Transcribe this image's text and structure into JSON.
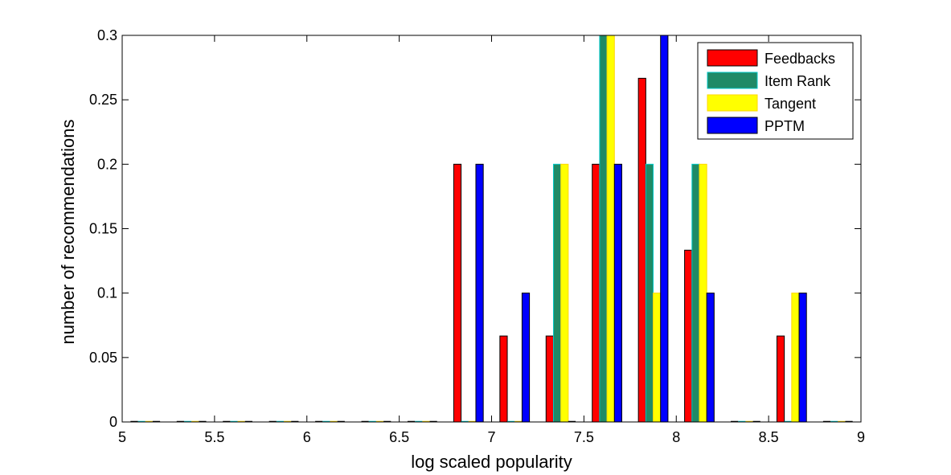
{
  "chart_data": {
    "type": "bar",
    "title": "",
    "xlabel": "log scaled popularity",
    "ylabel": "number of recommendations",
    "xlim": [
      5,
      9
    ],
    "ylim": [
      0,
      0.3
    ],
    "x_ticks": [
      "5",
      "5.5",
      "6",
      "6.5",
      "7",
      "7.5",
      "8",
      "8.5",
      "9"
    ],
    "y_ticks": [
      "0",
      "0.05",
      "0.1",
      "0.15",
      "0.2",
      "0.25",
      "0.3"
    ],
    "grid": false,
    "legend_position": "top-right",
    "x": [
      5.125,
      5.375,
      5.625,
      5.875,
      6.125,
      6.375,
      6.625,
      6.875,
      7.125,
      7.375,
      7.625,
      7.875,
      8.125,
      8.375,
      8.625,
      8.875
    ],
    "series": [
      {
        "name": "Feedbacks",
        "color": "#ff0000",
        "edge": "#000000",
        "values": [
          0,
          0,
          0,
          0,
          0,
          0,
          0,
          0.2,
          0.0667,
          0.0667,
          0.2,
          0.2667,
          0.1333,
          0,
          0.0667,
          0
        ]
      },
      {
        "name": "Item Rank",
        "color": "#1f8a66",
        "edge": "#00c8c8",
        "values": [
          0,
          0,
          0,
          0,
          0,
          0,
          0,
          0,
          0,
          0.2,
          0.3,
          0.2,
          0.2,
          0,
          0,
          0
        ]
      },
      {
        "name": "Tangent",
        "color": "#ffff00",
        "edge": "#ffd700",
        "values": [
          0,
          0,
          0,
          0,
          0,
          0,
          0,
          0,
          0,
          0.2,
          0.3,
          0.1,
          0.2,
          0,
          0.1,
          0
        ]
      },
      {
        "name": "PPTM",
        "color": "#0000ff",
        "edge": "#000000",
        "values": [
          0,
          0,
          0,
          0,
          0,
          0,
          0,
          0.2,
          0.1,
          0,
          0.2,
          0.3,
          0.1,
          0,
          0.1,
          0
        ]
      }
    ]
  }
}
